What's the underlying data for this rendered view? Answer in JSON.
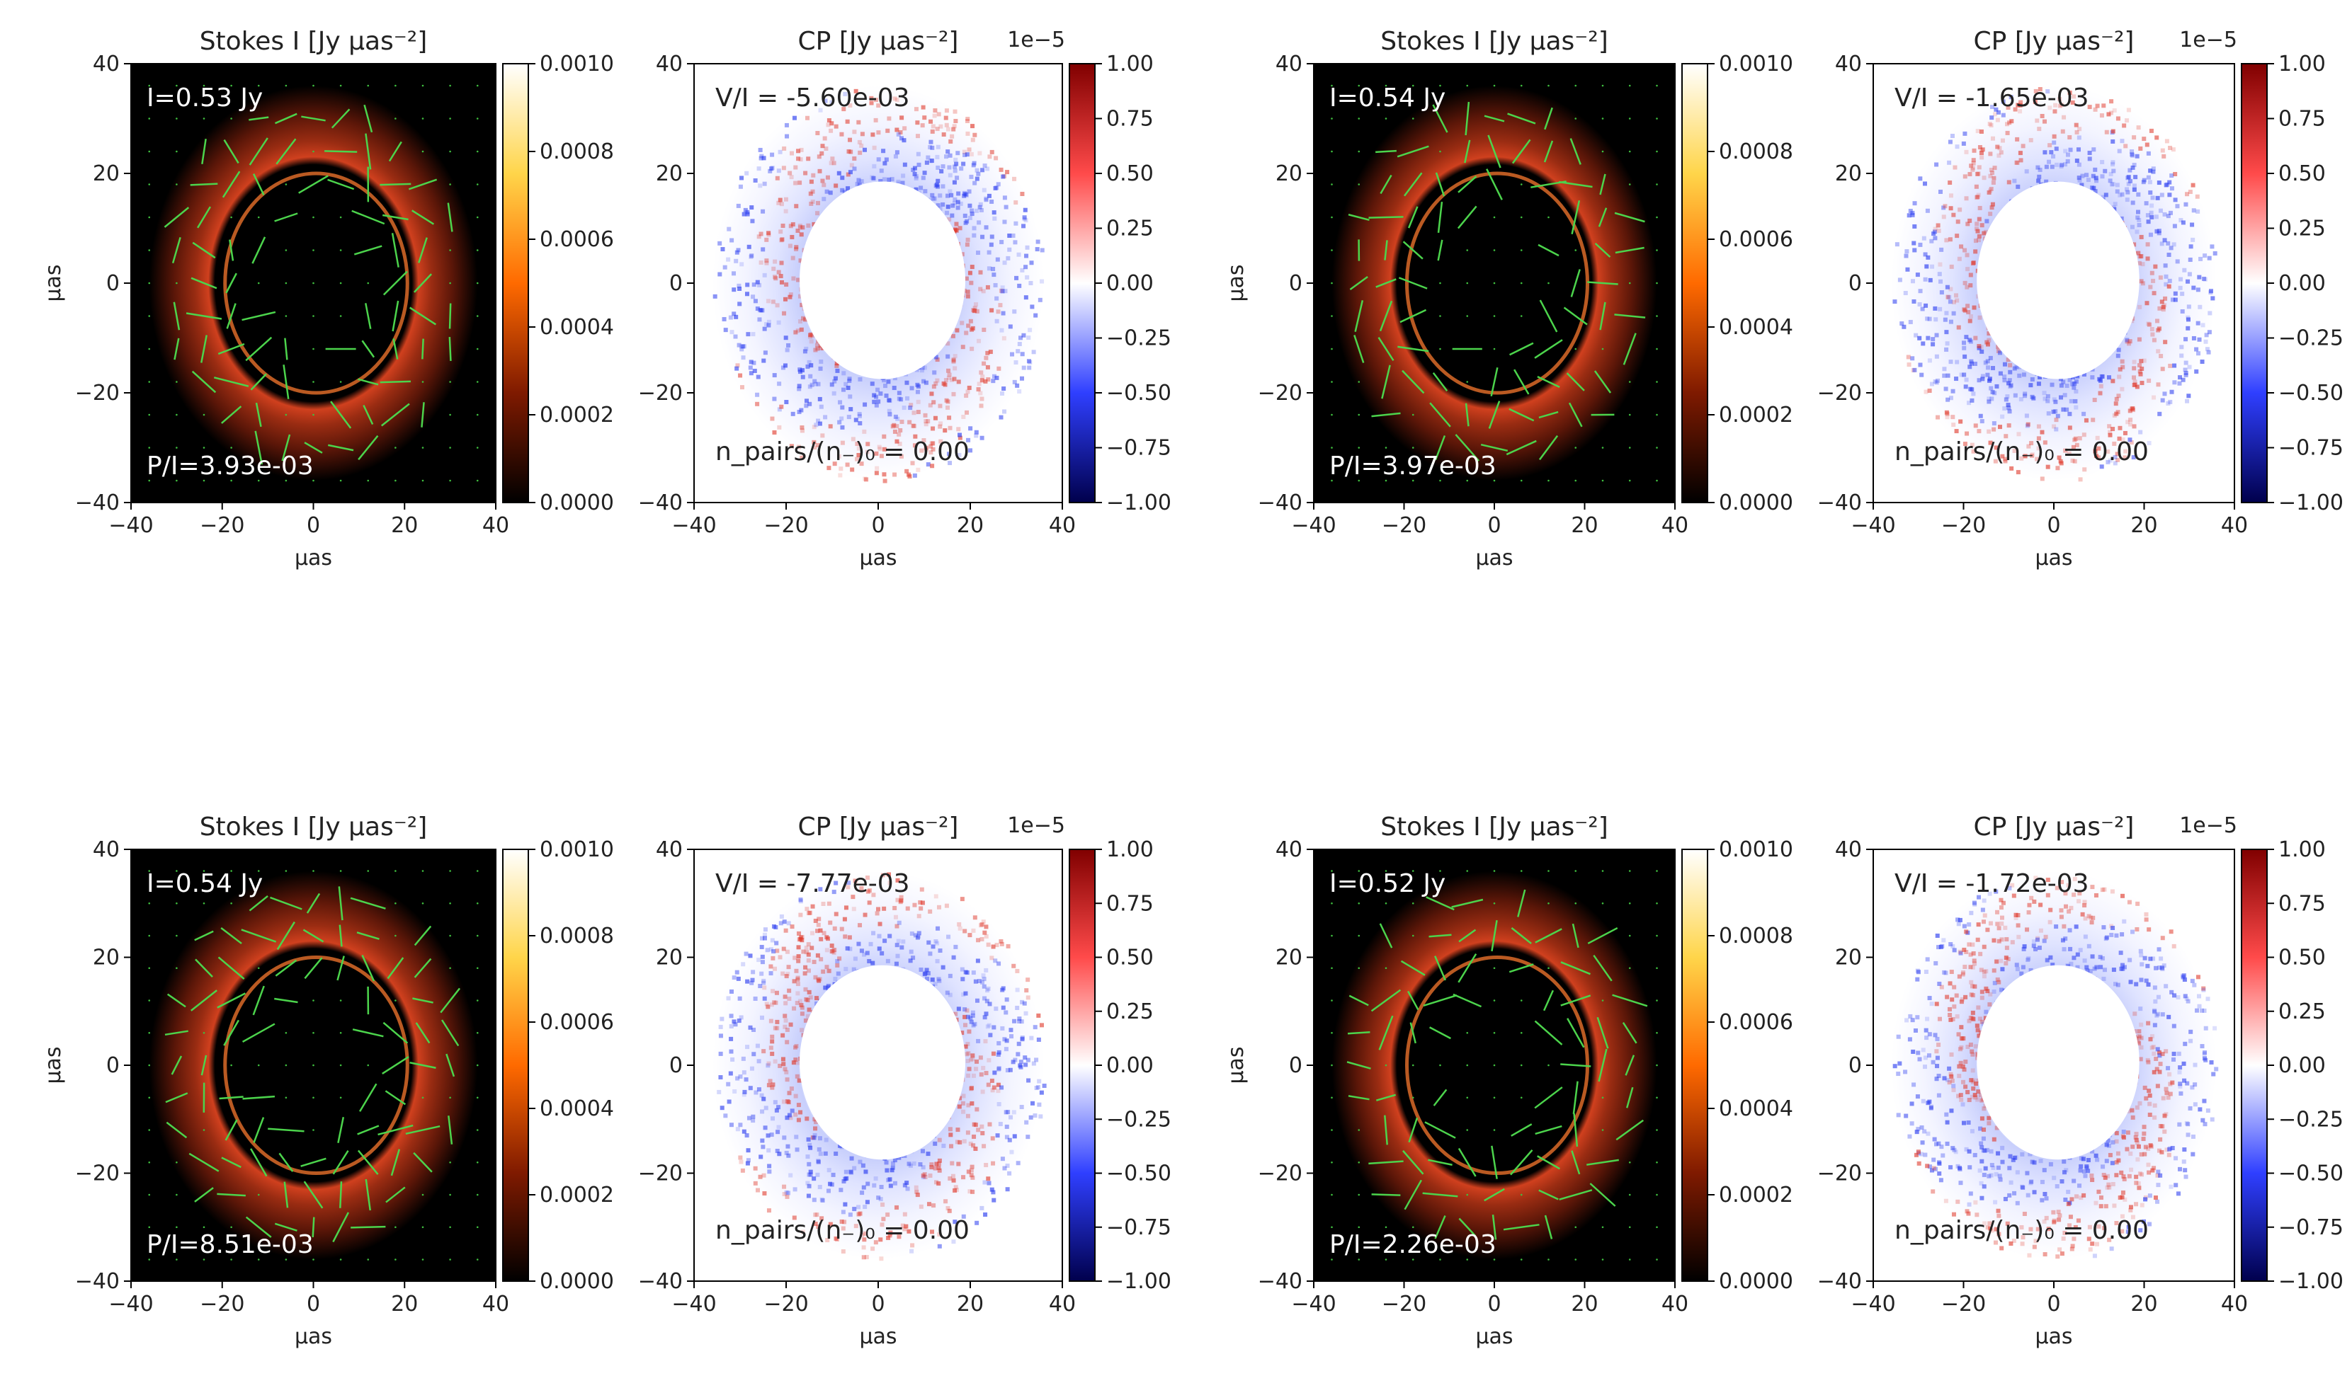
{
  "figure": {
    "panels": [
      {
        "stokes": {
          "title": "Stokes I [Jy μas⁻²]",
          "total_flux": "I=0.53 Jy",
          "pol_frac": "P/I=3.93e-03"
        },
        "cp": {
          "title": "CP [Jy μas⁻²]",
          "vi": "V/I = -5.60e-03",
          "pair_label": "n_pairs/(n₋)₀ = 0.00",
          "scale": "1e−5"
        }
      },
      {
        "stokes": {
          "title": "Stokes I [Jy μas⁻²]",
          "total_flux": "I=0.54 Jy",
          "pol_frac": "P/I=3.97e-03"
        },
        "cp": {
          "title": "CP [Jy μas⁻²]",
          "vi": "V/I = -1.65e-03",
          "pair_label": "n_pairs/(n₋)₀ = 0.00",
          "scale": "1e−5"
        }
      },
      {
        "stokes": {
          "title": "Stokes I [Jy μas⁻²]",
          "total_flux": "I=0.54 Jy",
          "pol_frac": "P/I=8.51e-03"
        },
        "cp": {
          "title": "CP [Jy μas⁻²]",
          "vi": "V/I = -7.77e-03",
          "pair_label": "n_pairs/(n₋)₀ = 0.00",
          "scale": "1e−5"
        }
      },
      {
        "stokes": {
          "title": "Stokes I [Jy μas⁻²]",
          "total_flux": "I=0.52 Jy",
          "pol_frac": "P/I=2.26e-03"
        },
        "cp": {
          "title": "CP [Jy μas⁻²]",
          "vi": "V/I = -1.72e-03",
          "pair_label": "n_pairs/(n₋)₀ = 0.00",
          "scale": "1e−5"
        }
      }
    ]
  },
  "chart_data": [
    {
      "type": "heatmap",
      "title": "Stokes I [Jy μas⁻²]",
      "xlabel": "μas",
      "ylabel": "μas",
      "xlim": [
        -40,
        40
      ],
      "ylim": [
        -40,
        40
      ],
      "xticks": [
        -40,
        -20,
        0,
        20,
        40
      ],
      "yticks": [
        -40,
        -20,
        0,
        20,
        40
      ],
      "colorbar": {
        "ticks": [
          "0.0000",
          "0.0002",
          "0.0004",
          "0.0006",
          "0.0008",
          "0.0010"
        ],
        "range": [
          0,
          0.001
        ],
        "colormap": "afmhot"
      },
      "annotations": [
        "I=0.53 Jy",
        "P/I=3.93e-03"
      ],
      "ring_diameter_uas": 40
    },
    {
      "type": "heatmap",
      "title": "CP [Jy μas⁻²]",
      "xlabel": "μas",
      "ylabel": "",
      "xlim": [
        -40,
        40
      ],
      "ylim": [
        -40,
        40
      ],
      "xticks": [
        -40,
        -20,
        0,
        20,
        40
      ],
      "yticks": [
        -40,
        -20,
        0,
        20,
        40
      ],
      "colorbar": {
        "ticks": [
          "−1.00",
          "−0.75",
          "−0.50",
          "−0.25",
          "0.00",
          "0.25",
          "0.50",
          "0.75",
          "1.00"
        ],
        "range": [
          -1,
          1
        ],
        "scale": "1e−5",
        "colormap": "seismic"
      },
      "annotations": [
        "V/I = -5.60e-03",
        "n_pairs/(n₋)₀ = 0.00"
      ]
    },
    {
      "type": "heatmap",
      "title": "Stokes I [Jy μas⁻²]",
      "xlabel": "μas",
      "ylabel": "μas",
      "xlim": [
        -40,
        40
      ],
      "ylim": [
        -40,
        40
      ],
      "xticks": [
        -40,
        -20,
        0,
        20,
        40
      ],
      "yticks": [
        -40,
        -20,
        0,
        20,
        40
      ],
      "colorbar": {
        "ticks": [
          "0.0000",
          "0.0002",
          "0.0004",
          "0.0006",
          "0.0008",
          "0.0010"
        ],
        "range": [
          0,
          0.001
        ],
        "colormap": "afmhot"
      },
      "annotations": [
        "I=0.54 Jy",
        "P/I=3.97e-03"
      ],
      "ring_diameter_uas": 40
    },
    {
      "type": "heatmap",
      "title": "CP [Jy μas⁻²]",
      "xlabel": "μas",
      "ylabel": "",
      "xlim": [
        -40,
        40
      ],
      "ylim": [
        -40,
        40
      ],
      "xticks": [
        -40,
        -20,
        0,
        20,
        40
      ],
      "yticks": [
        -40,
        -20,
        0,
        20,
        40
      ],
      "colorbar": {
        "ticks": [
          "−1.00",
          "−0.75",
          "−0.50",
          "−0.25",
          "0.00",
          "0.25",
          "0.50",
          "0.75",
          "1.00"
        ],
        "range": [
          -1,
          1
        ],
        "scale": "1e−5",
        "colormap": "seismic"
      },
      "annotations": [
        "V/I = -1.65e-03",
        "n_pairs/(n₋)₀ = 0.00"
      ]
    },
    {
      "type": "heatmap",
      "title": "Stokes I [Jy μas⁻²]",
      "xlabel": "μas",
      "ylabel": "μas",
      "xlim": [
        -40,
        40
      ],
      "ylim": [
        -40,
        40
      ],
      "xticks": [
        -40,
        -20,
        0,
        20,
        40
      ],
      "yticks": [
        -40,
        -20,
        0,
        20,
        40
      ],
      "colorbar": {
        "ticks": [
          "0.0000",
          "0.0002",
          "0.0004",
          "0.0006",
          "0.0008",
          "0.0010"
        ],
        "range": [
          0,
          0.001
        ],
        "colormap": "afmhot"
      },
      "annotations": [
        "I=0.54 Jy",
        "P/I=8.51e-03"
      ],
      "ring_diameter_uas": 40
    },
    {
      "type": "heatmap",
      "title": "CP [Jy μas⁻²]",
      "xlabel": "μas",
      "ylabel": "",
      "xlim": [
        -40,
        40
      ],
      "ylim": [
        -40,
        40
      ],
      "xticks": [
        -40,
        -20,
        0,
        20,
        40
      ],
      "yticks": [
        -40,
        -20,
        0,
        20,
        40
      ],
      "colorbar": {
        "ticks": [
          "−1.00",
          "−0.75",
          "−0.50",
          "−0.25",
          "0.00",
          "0.25",
          "0.50",
          "0.75",
          "1.00"
        ],
        "range": [
          -1,
          1
        ],
        "scale": "1e−5",
        "colormap": "seismic"
      },
      "annotations": [
        "V/I = -7.77e-03",
        "n_pairs/(n₋)₀ = 0.00"
      ]
    },
    {
      "type": "heatmap",
      "title": "Stokes I [Jy μas⁻²]",
      "xlabel": "μas",
      "ylabel": "μas",
      "xlim": [
        -40,
        40
      ],
      "ylim": [
        -40,
        40
      ],
      "xticks": [
        -40,
        -20,
        0,
        20,
        40
      ],
      "yticks": [
        -40,
        -20,
        0,
        20,
        40
      ],
      "colorbar": {
        "ticks": [
          "0.0000",
          "0.0002",
          "0.0004",
          "0.0006",
          "0.0008",
          "0.0010"
        ],
        "range": [
          0,
          0.001
        ],
        "colormap": "afmhot"
      },
      "annotations": [
        "I=0.52 Jy",
        "P/I=2.26e-03"
      ],
      "ring_diameter_uas": 40
    },
    {
      "type": "heatmap",
      "title": "CP [Jy μas⁻²]",
      "xlabel": "μas",
      "ylabel": "",
      "xlim": [
        -40,
        40
      ],
      "ylim": [
        -40,
        40
      ],
      "xticks": [
        -40,
        -20,
        0,
        20,
        40
      ],
      "yticks": [
        -40,
        -20,
        0,
        20,
        40
      ],
      "colorbar": {
        "ticks": [
          "−1.00",
          "−0.75",
          "−0.50",
          "−0.25",
          "0.00",
          "0.25",
          "0.50",
          "0.75",
          "1.00"
        ],
        "range": [
          -1,
          1
        ],
        "scale": "1e−5",
        "colormap": "seismic"
      },
      "annotations": [
        "V/I = -1.72e-03",
        "n_pairs/(n₋)₀ = 0.00"
      ]
    }
  ]
}
